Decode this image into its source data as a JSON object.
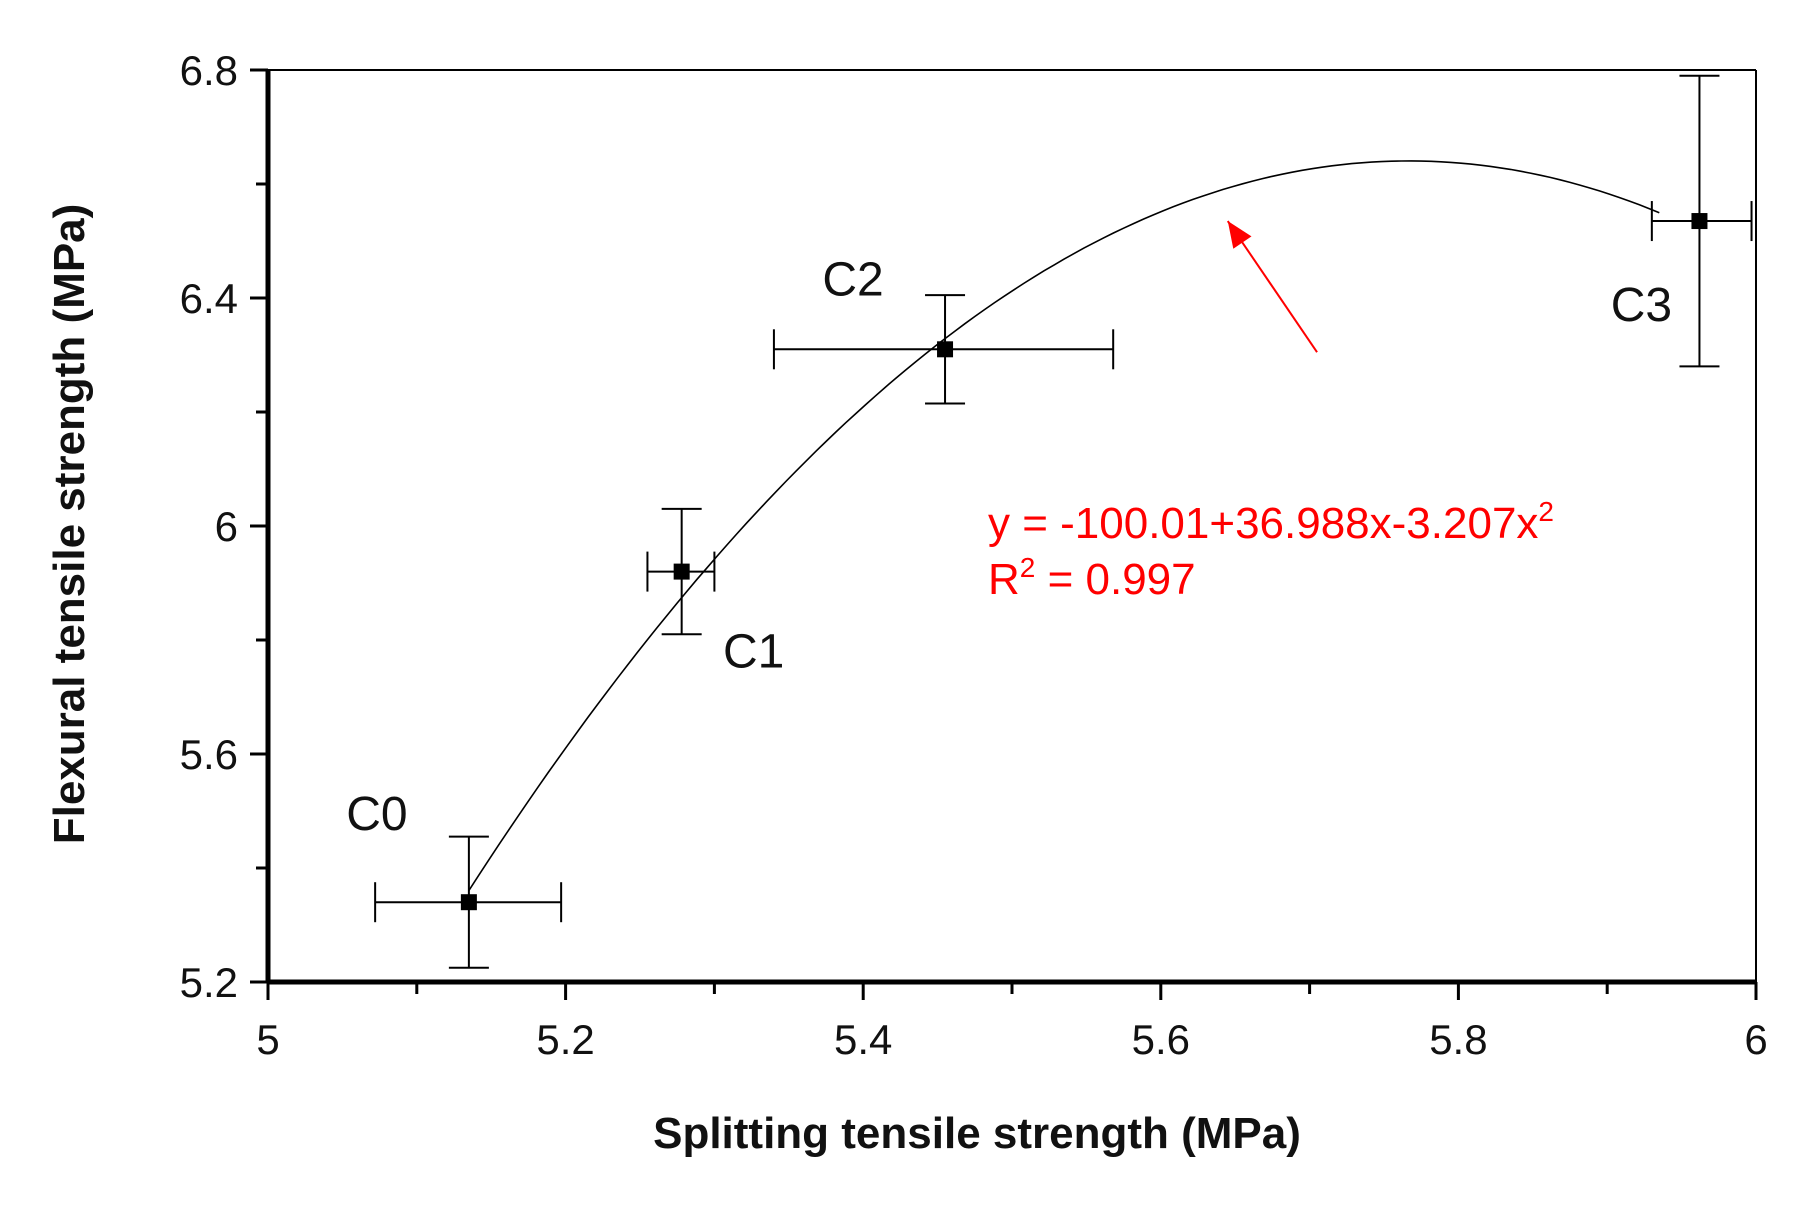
{
  "chart_data": {
    "type": "scatter",
    "xlabel": "Splitting tensile strength (MPa)",
    "ylabel": "Flexural tensile strength (MPa)",
    "xlim": [
      5,
      6
    ],
    "ylim": [
      5.2,
      6.8
    ],
    "x_ticks": [
      "5",
      "5.2",
      "5.4",
      "5.6",
      "5.8",
      "6"
    ],
    "y_ticks": [
      "5.2",
      "5.6",
      "6",
      "6.4",
      "6.8"
    ],
    "x_tick_values": [
      5,
      5.2,
      5.4,
      5.6,
      5.8,
      6
    ],
    "y_tick_values": [
      5.2,
      5.6,
      6.0,
      6.4,
      6.8
    ],
    "x_minor_step": 0.1,
    "y_minor_step": 0.2,
    "grid": false,
    "legend": "none",
    "points": [
      {
        "label": "C0",
        "x": 5.135,
        "y": 5.34,
        "x_err_low": 5.072,
        "x_err_high": 5.197,
        "y_err_low": 5.225,
        "y_err_high": 5.455
      },
      {
        "label": "C1",
        "x": 5.278,
        "y": 5.92,
        "x_err_low": 5.255,
        "x_err_high": 5.3,
        "y_err_low": 5.81,
        "y_err_high": 6.03
      },
      {
        "label": "C2",
        "x": 5.455,
        "y": 6.31,
        "x_err_low": 5.34,
        "x_err_high": 5.568,
        "y_err_low": 6.215,
        "y_err_high": 6.405
      },
      {
        "label": "C3",
        "x": 5.962,
        "y": 6.535,
        "x_err_low": 5.93,
        "x_err_high": 5.997,
        "y_err_low": 6.28,
        "y_err_high": 6.79
      }
    ],
    "fit": {
      "coefficients": [
        -100.01,
        36.988,
        -3.207
      ],
      "x_range": [
        5.135,
        5.935
      ]
    },
    "annotation": {
      "equation_prefix": "y = -100.01+36.988x-3.207x",
      "equation_sup": "2",
      "r2_prefix": "R",
      "r2_sup": "2",
      "r2_suffix": " = 0.997",
      "arrow_from": [
        5.705,
        6.305
      ],
      "arrow_to": [
        5.645,
        6.535
      ],
      "color": "#ff0000"
    },
    "colors": {
      "axis": "#000000",
      "marker": "#000000",
      "fit_line": "#000000",
      "annotation": "#ff0000"
    }
  }
}
